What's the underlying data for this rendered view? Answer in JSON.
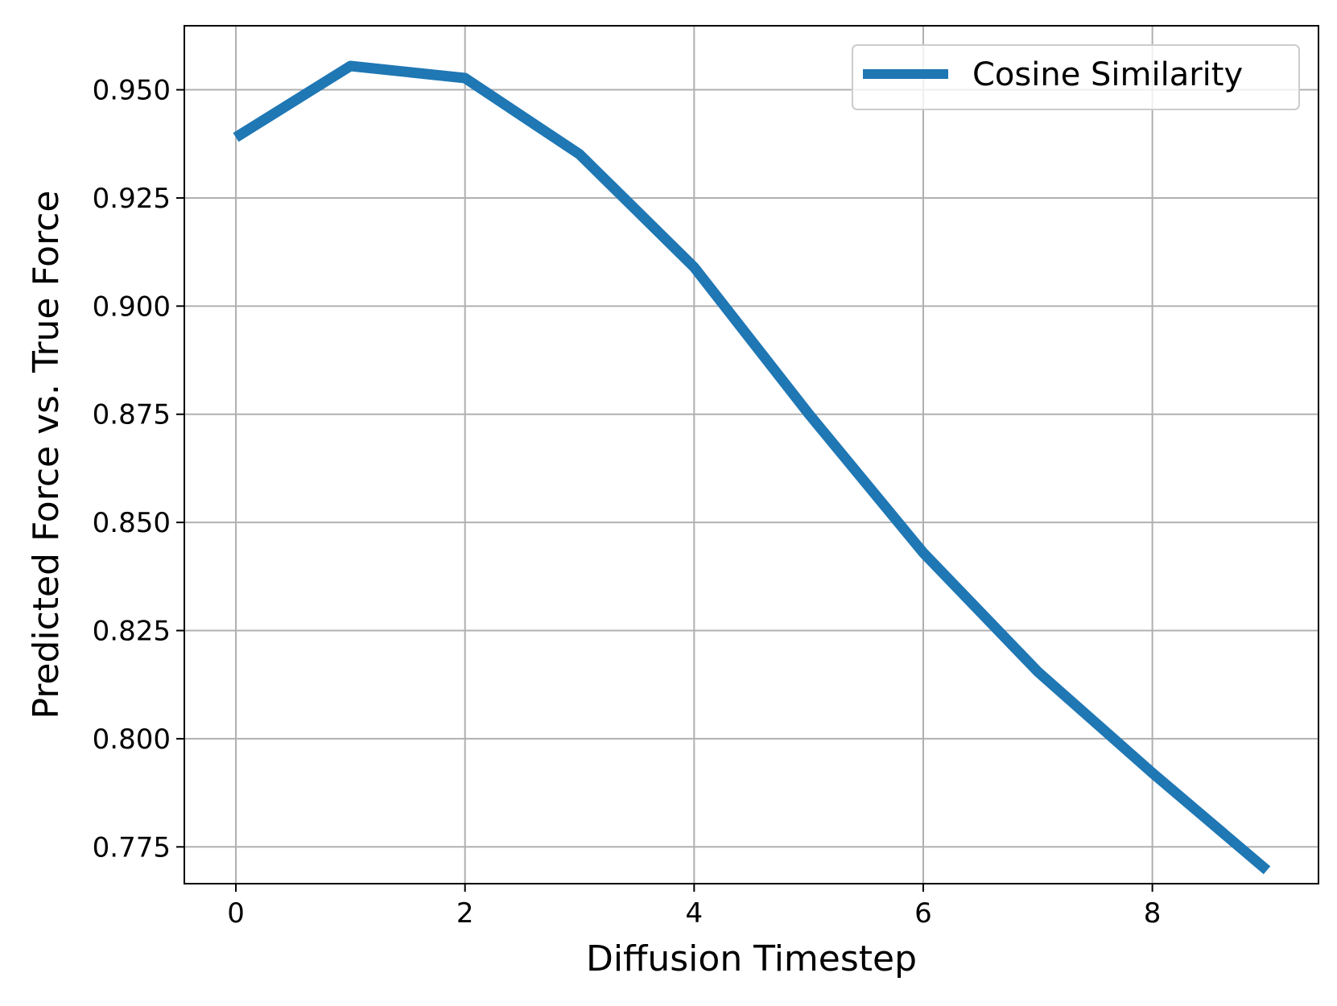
{
  "chart_data": {
    "type": "line",
    "title": "",
    "xlabel": "Diffusion Timestep",
    "ylabel": "Predicted Force vs. True Force",
    "xlim": [
      -0.45,
      9.45
    ],
    "ylim": [
      0.7665,
      0.9648
    ],
    "xticks": [
      0,
      2,
      4,
      6,
      8
    ],
    "xtick_labels": [
      "0",
      "2",
      "4",
      "6",
      "8"
    ],
    "yticks": [
      0.775,
      0.8,
      0.825,
      0.85,
      0.875,
      0.9,
      0.925,
      0.95
    ],
    "ytick_labels": [
      "0.775",
      "0.800",
      "0.825",
      "0.850",
      "0.875",
      "0.900",
      "0.925",
      "0.950"
    ],
    "grid": true,
    "legend": {
      "position": "upper right"
    },
    "series": [
      {
        "name": "Cosine Similarity",
        "color": "#1f77b4",
        "x": [
          0,
          1,
          2,
          3,
          4,
          5,
          6,
          7,
          8,
          9
        ],
        "y": [
          0.939,
          0.9555,
          0.9527,
          0.9351,
          0.909,
          0.8751,
          0.843,
          0.8155,
          0.7921,
          0.7696
        ]
      }
    ]
  }
}
